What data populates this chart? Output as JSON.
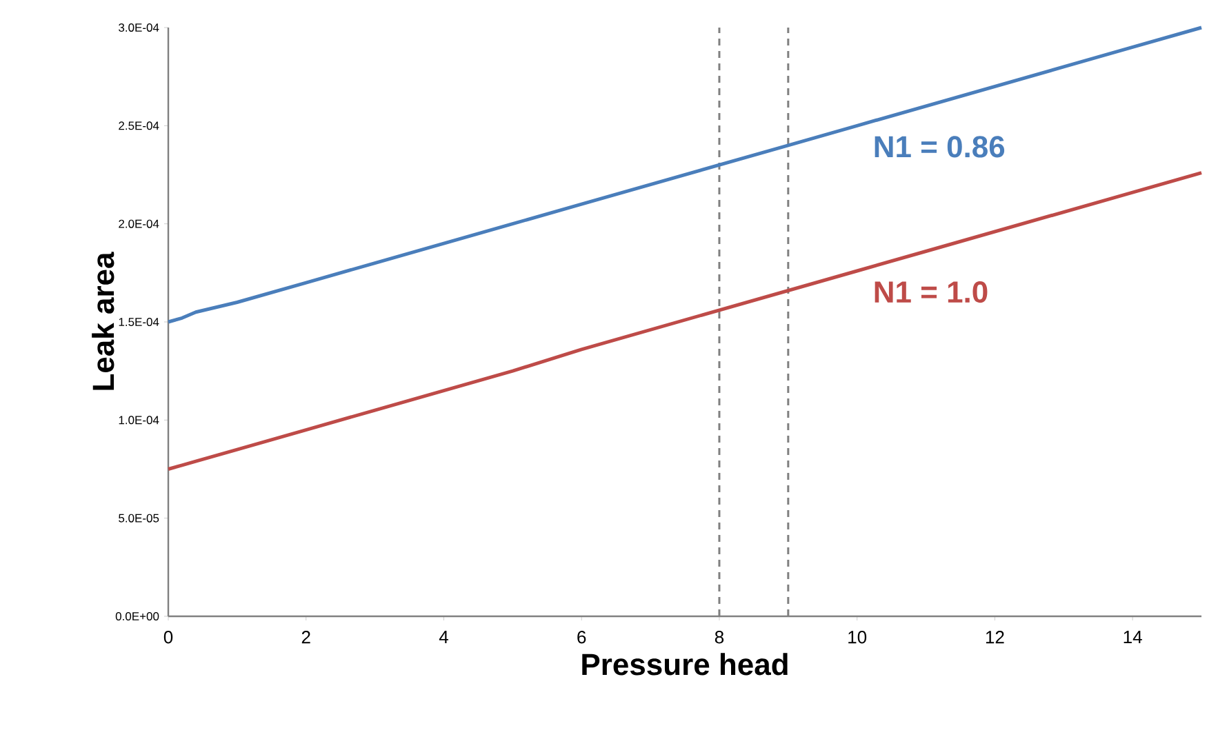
{
  "chart_data": {
    "type": "line",
    "xlabel": "Pressure head",
    "ylabel": "Leak area",
    "xlim": [
      0,
      15
    ],
    "xticks": [
      0,
      2,
      4,
      6,
      8,
      10,
      12,
      14
    ],
    "ylim": [
      0,
      0.0003
    ],
    "yticks": [
      {
        "value": 0,
        "label": "0.0E+00"
      },
      {
        "value": 5e-05,
        "label": "5.0E-05"
      },
      {
        "value": 0.0001,
        "label": "1.0E-04"
      },
      {
        "value": 0.00015,
        "label": "1.5E-04"
      },
      {
        "value": 0.0002,
        "label": "2.0E-04"
      },
      {
        "value": 0.00025,
        "label": "2.5E-04"
      },
      {
        "value": 0.0003,
        "label": "3.0E-04"
      }
    ],
    "grid": false,
    "marker": "none",
    "line_style": "solid",
    "x": [
      0,
      0.2,
      0.4,
      1,
      2,
      3,
      4,
      5,
      6,
      7,
      8,
      9,
      10,
      11,
      12,
      13,
      14,
      15
    ],
    "series": [
      {
        "name": "N1 = 0.86",
        "color": "#4a7ebb",
        "values": [
          0.00015,
          0.000152,
          0.000155,
          0.00016,
          0.00017,
          0.00018,
          0.00019,
          0.0002,
          0.00021,
          0.00022,
          0.00023,
          0.00024,
          0.00025,
          0.00026,
          0.00027,
          0.00028,
          0.00029,
          0.0003
        ]
      },
      {
        "name": "N1 = 1.0",
        "color": "#be4b48",
        "values": [
          7.5e-05,
          7.7e-05,
          7.9e-05,
          8.5e-05,
          9.5e-05,
          0.000105,
          0.000115,
          0.000125,
          0.000136,
          0.000146,
          0.000156,
          0.000166,
          0.000176,
          0.000186,
          0.000196,
          0.000206,
          0.000216,
          0.000226
        ]
      }
    ],
    "ref_lines": [
      {
        "axis": "x",
        "value": 8,
        "color": "#808080",
        "line_style": "dashed"
      },
      {
        "axis": "x",
        "value": 9,
        "color": "#808080",
        "line_style": "dashed"
      }
    ]
  }
}
